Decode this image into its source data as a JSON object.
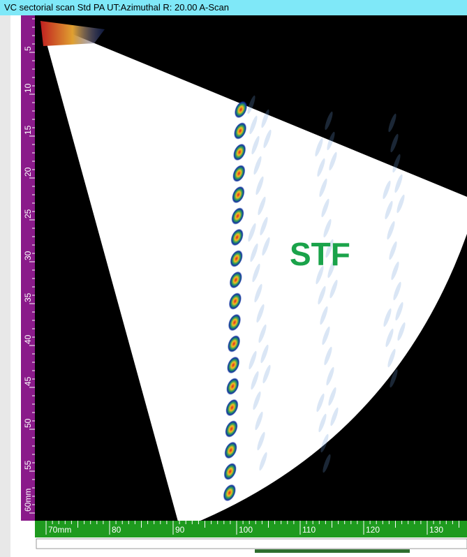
{
  "header": {
    "title": "VC sectorial scan Std PA UT:Azimuthal   R: 20.00 A-Scan"
  },
  "left_ruler": {
    "labels": [
      "5",
      "10",
      "15",
      "20",
      "25",
      "30",
      "35",
      "40",
      "45",
      "50",
      "55",
      "60mm"
    ]
  },
  "bottom_ruler": {
    "labels": [
      "70mm",
      "80",
      "90",
      "100",
      "110",
      "120",
      "130"
    ]
  },
  "annotation": {
    "text": "STF"
  }
}
